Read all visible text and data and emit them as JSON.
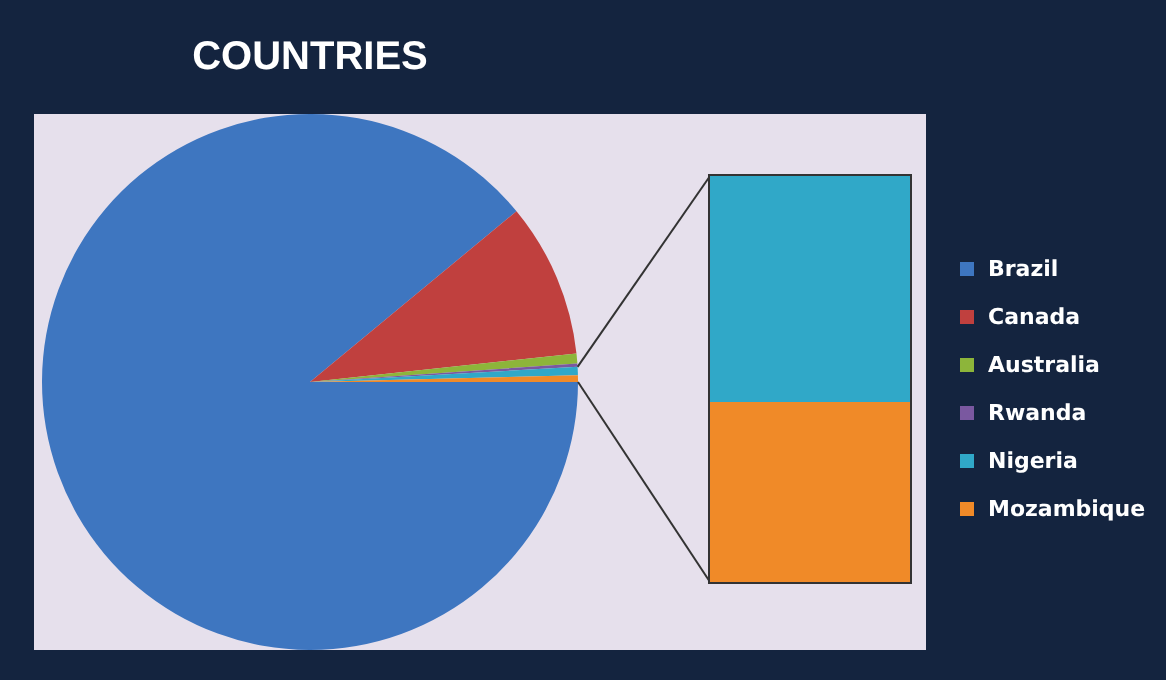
{
  "chart_data": {
    "type": "pie",
    "title": "COUNTRIES",
    "categories": [
      "Brazil",
      "Canada",
      "Australia",
      "Rwanda",
      "Nigeria",
      "Mozambique"
    ],
    "values": [
      89.0,
      9.3,
      0.6,
      0.2,
      0.5,
      0.4
    ],
    "colors": [
      "#3e76c0",
      "#c0403e",
      "#8db53a",
      "#7a58a0",
      "#30a8c8",
      "#f08a28"
    ],
    "legend": "right"
  }
}
